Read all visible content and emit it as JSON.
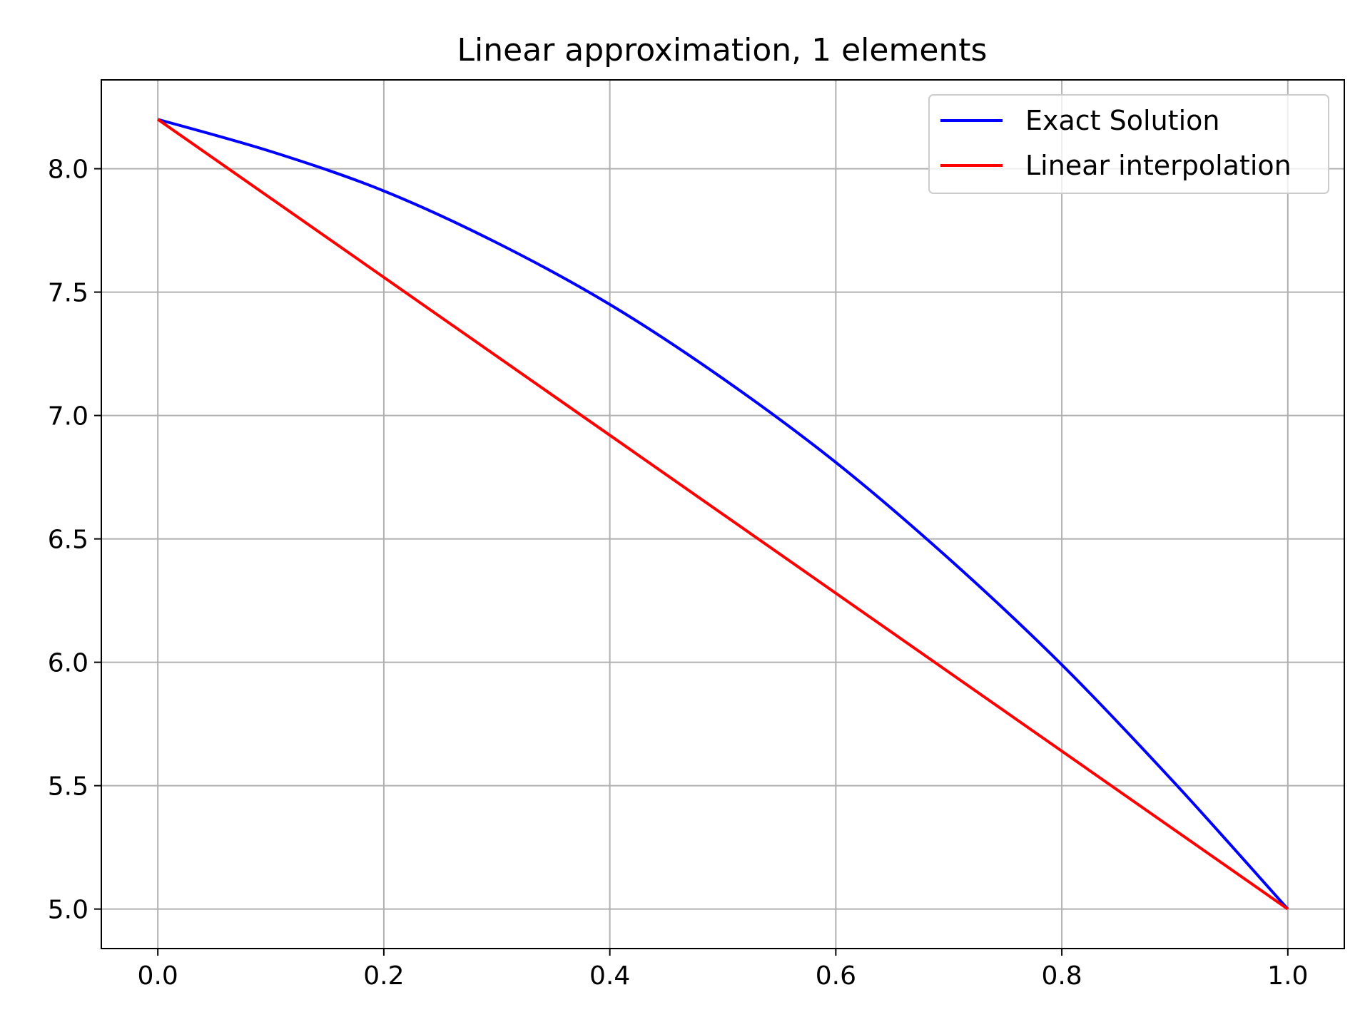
{
  "chart_data": {
    "type": "line",
    "title": "Linear approximation, 1 elements",
    "xlabel": "",
    "ylabel": "",
    "xlim": [
      -0.05,
      1.05
    ],
    "ylim": [
      4.84,
      8.36
    ],
    "xticks": [
      0.0,
      0.2,
      0.4,
      0.6,
      0.8,
      1.0
    ],
    "xtick_labels": [
      "0.0",
      "0.2",
      "0.4",
      "0.6",
      "0.8",
      "1.0"
    ],
    "yticks": [
      5.0,
      5.5,
      6.0,
      6.5,
      7.0,
      7.5,
      8.0
    ],
    "ytick_labels": [
      "5.0",
      "5.5",
      "6.0",
      "6.5",
      "7.0",
      "7.5",
      "8.0"
    ],
    "grid": true,
    "legend_position": "top-right",
    "series": [
      {
        "name": "Exact Solution",
        "color": "#0000ff",
        "x": [
          0.0,
          0.1,
          0.2,
          0.3,
          0.4,
          0.5,
          0.6,
          0.7,
          0.8,
          0.9,
          1.0
        ],
        "y": [
          8.2,
          8.07,
          7.91,
          7.7,
          7.45,
          7.15,
          6.81,
          6.42,
          5.99,
          5.51,
          5.0
        ]
      },
      {
        "name": "Linear interpolation",
        "color": "#ff0000",
        "x": [
          0.0,
          1.0
        ],
        "y": [
          8.2,
          5.0
        ]
      }
    ]
  }
}
